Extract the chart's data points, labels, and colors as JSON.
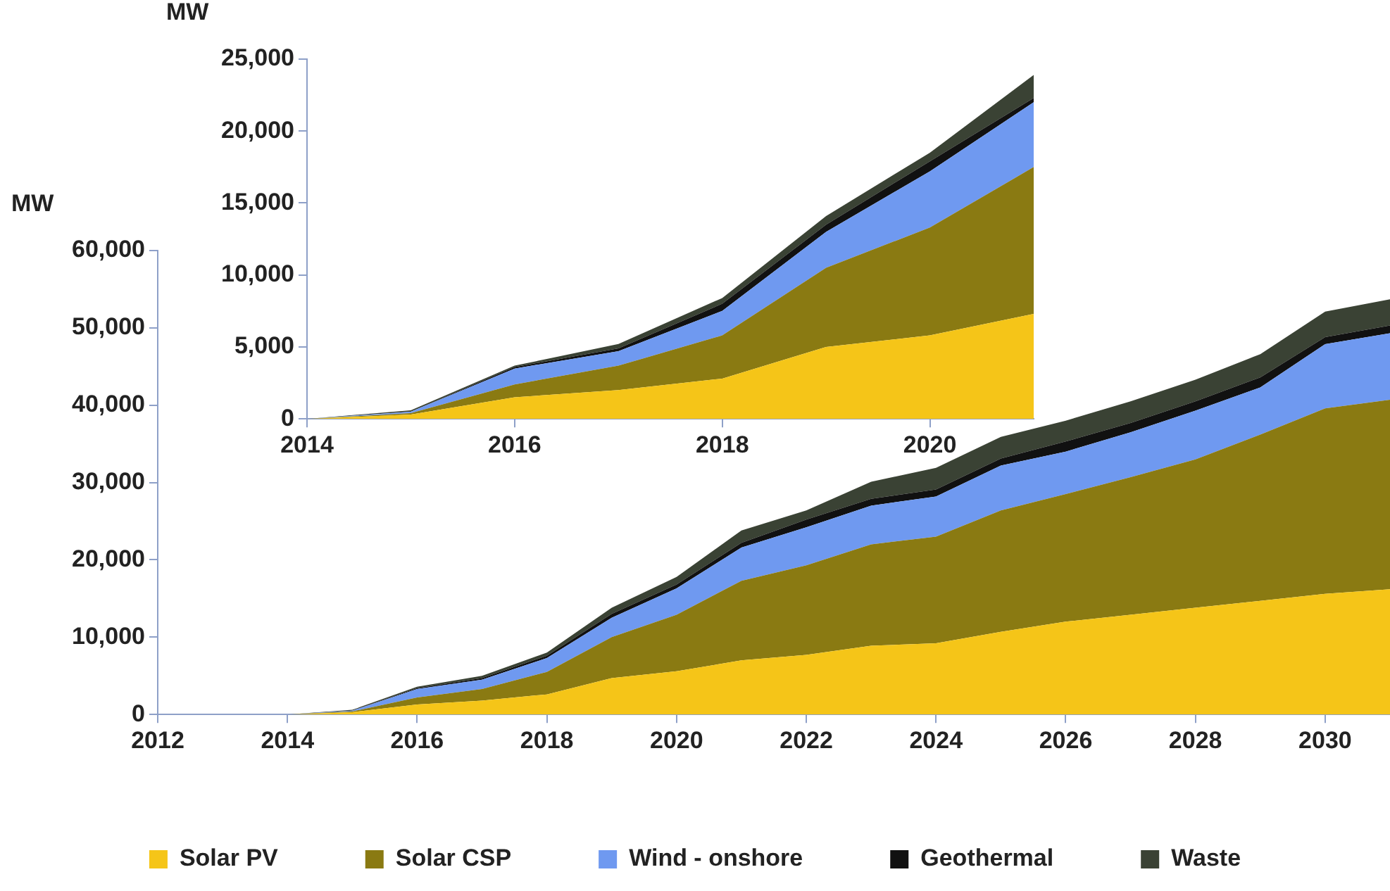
{
  "chart_data": [
    {
      "type": "area",
      "ylabel": "MW",
      "stacked": true,
      "legend": "bottom",
      "x": [
        2012,
        2013,
        2014,
        2015,
        2016,
        2017,
        2018,
        2019,
        2020,
        2021,
        2022,
        2023,
        2024,
        2025,
        2026,
        2027,
        2028,
        2029,
        2030,
        2031
      ],
      "series": [
        {
          "name": "Solar PV",
          "color": "#f5c518",
          "values": [
            0,
            0,
            0,
            300,
            1300,
            1800,
            2600,
            4700,
            5600,
            7000,
            7700,
            8900,
            9200,
            10700,
            12000,
            12900,
            13800,
            14700,
            15600,
            16200
          ]
        },
        {
          "name": "Solar CSP",
          "color": "#8a7a12",
          "values": [
            0,
            0,
            0,
            100,
            900,
            1500,
            2900,
            5300,
            7300,
            10300,
            11600,
            13100,
            13800,
            15700,
            16500,
            17800,
            19200,
            21500,
            24000,
            24500
          ]
        },
        {
          "name": "Wind - onshore",
          "color": "#6f99f0",
          "values": [
            0,
            0,
            0,
            100,
            1100,
            1200,
            1800,
            2500,
            3400,
            4300,
            4900,
            5000,
            5200,
            5800,
            5500,
            5800,
            6300,
            6100,
            8300,
            8600
          ]
        },
        {
          "name": "Geothermal",
          "color": "#111111",
          "values": [
            0,
            0,
            0,
            0,
            100,
            200,
            300,
            500,
            500,
            600,
            1000,
            900,
            900,
            900,
            1300,
            1200,
            1200,
            1300,
            900,
            1000
          ]
        },
        {
          "name": "Waste",
          "color": "#3a4234",
          "values": [
            0,
            0,
            0,
            100,
            200,
            300,
            400,
            800,
            1000,
            1600,
            1200,
            2200,
            2800,
            2800,
            2700,
            2800,
            2800,
            3000,
            3300,
            3400
          ]
        }
      ],
      "xlim": [
        2012,
        2031
      ],
      "xticks": [
        2012,
        2014,
        2016,
        2018,
        2020,
        2022,
        2024,
        2026,
        2028,
        2030
      ],
      "ylim": [
        0,
        60000
      ],
      "yticks": [
        0,
        {
          "value": 10000,
          "label": "10,000"
        },
        {
          "value": 20000,
          "label": "20,000"
        },
        {
          "value": 30000,
          "label": "30,000"
        },
        {
          "value": 40000,
          "label": "40,000"
        },
        {
          "value": 50000,
          "label": "50,000"
        },
        {
          "value": 60000,
          "label": "60,000"
        }
      ]
    },
    {
      "type": "area",
      "ylabel": "MW",
      "stacked": true,
      "x": [
        2014,
        2015,
        2016,
        2017,
        2018,
        2019,
        2020,
        2021
      ],
      "series": [
        {
          "color": "#f5c518",
          "values": [
            0,
            300,
            1500,
            2000,
            2800,
            5000,
            5800,
            7300
          ]
        },
        {
          "color": "#8a7a12",
          "values": [
            0,
            100,
            900,
            1700,
            3000,
            5500,
            7500,
            10200
          ]
        },
        {
          "color": "#6f99f0",
          "values": [
            0,
            100,
            1100,
            1000,
            1700,
            2500,
            3900,
            4500
          ]
        },
        {
          "color": "#111111",
          "values": [
            0,
            0,
            100,
            200,
            500,
            500,
            700,
            300
          ]
        },
        {
          "color": "#3a4234",
          "values": [
            0,
            100,
            100,
            300,
            400,
            600,
            600,
            1600
          ]
        }
      ],
      "xlim": [
        2014,
        2021
      ],
      "xticks": [
        2014,
        2016,
        2018,
        2020
      ],
      "ylim": [
        0,
        25000
      ],
      "yticks": [
        0,
        {
          "value": 5000,
          "label": "5,000"
        },
        {
          "value": 10000,
          "label": "10,000"
        },
        {
          "value": 15000,
          "label": "15,000"
        },
        {
          "value": 20000,
          "label": "20,000"
        },
        {
          "value": 25000,
          "label": "25,000"
        }
      ]
    }
  ]
}
